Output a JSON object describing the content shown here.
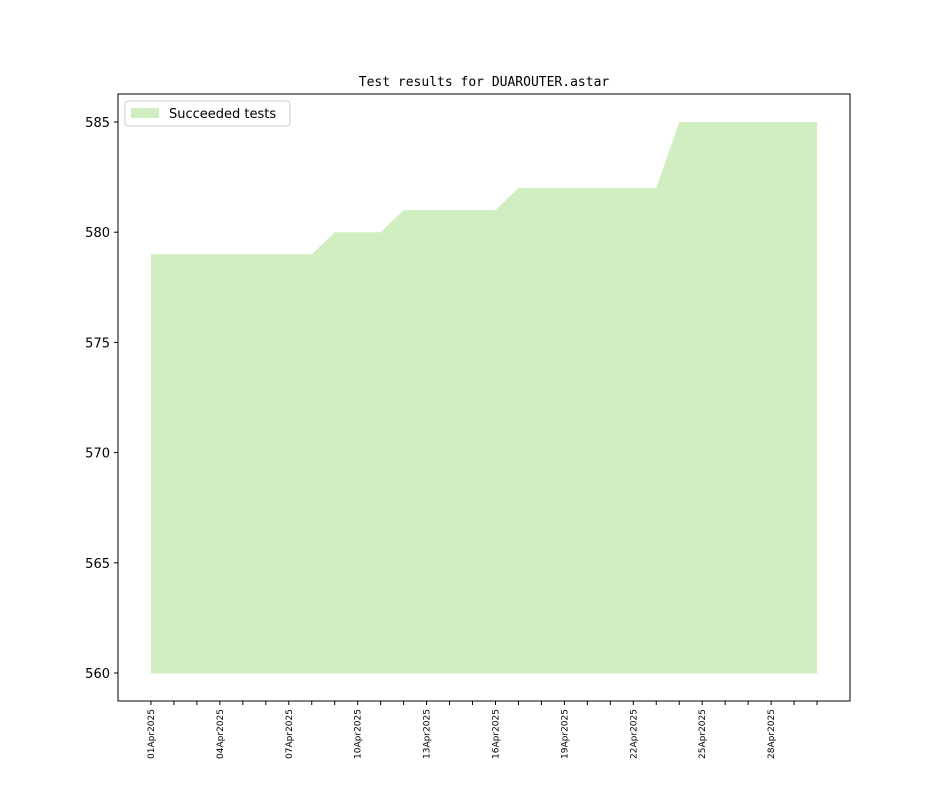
{
  "chart_data": {
    "type": "area",
    "title": "Test results for DUAROUTER.astar",
    "categories": [
      "01Apr2025",
      null,
      null,
      "04Apr2025",
      null,
      null,
      "07Apr2025",
      null,
      null,
      "10Apr2025",
      null,
      null,
      "13Apr2025",
      null,
      null,
      "16Apr2025",
      null,
      null,
      "19Apr2025",
      null,
      null,
      "22Apr2025",
      null,
      null,
      "25Apr2025",
      null,
      null,
      "28Apr2025",
      null,
      null
    ],
    "series": [
      {
        "name": "Succeeded tests",
        "color": "#d0eec0",
        "values": [
          579,
          579,
          579,
          579,
          579,
          579,
          579,
          579,
          580,
          580,
          580,
          581,
          581,
          581,
          581,
          581,
          582,
          582,
          582,
          582,
          582,
          582,
          582,
          585,
          585,
          585,
          585,
          585,
          585,
          585
        ]
      }
    ],
    "baseline": 560,
    "ylim": [
      558.73,
      586.27
    ],
    "yticks": [
      560,
      565,
      570,
      575,
      580,
      585
    ],
    "legend": "upper left"
  }
}
